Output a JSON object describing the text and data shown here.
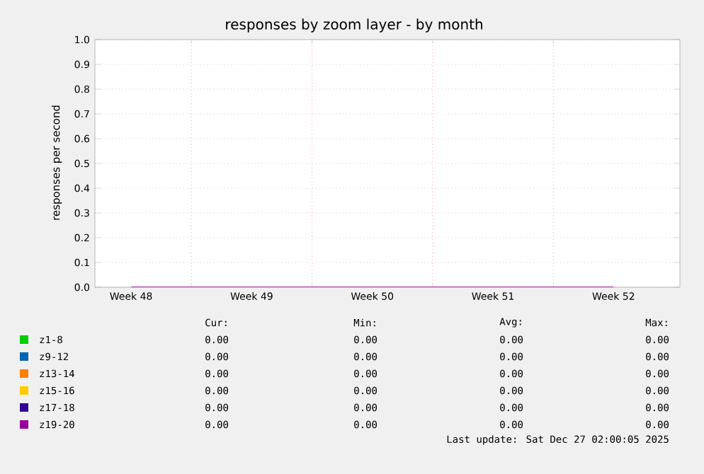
{
  "chart_data": {
    "type": "line",
    "title": "responses by zoom layer - by month",
    "ylabel": "responses per second",
    "categories": [
      "Week 48",
      "Week 49",
      "Week 50",
      "Week 51",
      "Week 52"
    ],
    "ylim": [
      0,
      1
    ],
    "yticks": [
      {
        "value": 0,
        "label": "0.0"
      },
      {
        "value": 0.1,
        "label": "0.1"
      },
      {
        "value": 0.2,
        "label": "0.2"
      },
      {
        "value": 0.3,
        "label": "0.3"
      },
      {
        "value": 0.4,
        "label": "0.4"
      },
      {
        "value": 0.5,
        "label": "0.5"
      },
      {
        "value": 0.6,
        "label": "0.6"
      },
      {
        "value": 0.7,
        "label": "0.7"
      },
      {
        "value": 0.8,
        "label": "0.8"
      },
      {
        "value": 0.9,
        "label": "0.9"
      },
      {
        "value": 1,
        "label": "1.0"
      }
    ],
    "grid": true,
    "legend": "bottom",
    "marker": "none",
    "series": [
      {
        "name": "z1-8",
        "color": "#00cc00",
        "values": [
          null,
          null,
          null,
          null,
          null
        ]
      },
      {
        "name": "z9-12",
        "color": "#0066b3",
        "values": [
          null,
          null,
          null,
          null,
          null
        ]
      },
      {
        "name": "z13-14",
        "color": "#ff8000",
        "values": [
          null,
          null,
          null,
          null,
          null
        ]
      },
      {
        "name": "z15-16",
        "color": "#ffcc00",
        "values": [
          null,
          null,
          null,
          null,
          null
        ]
      },
      {
        "name": "z17-18",
        "color": "#330099",
        "values": [
          null,
          null,
          null,
          null,
          null
        ]
      },
      {
        "name": "z19-20",
        "color": "#990099",
        "values": [
          0,
          0,
          0,
          0,
          0
        ]
      }
    ],
    "annotations": [
      "Cur:",
      "Min:",
      "Avg:",
      "Max:",
      "0.00",
      "0.00",
      "0.00",
      "0.00",
      "0.00",
      "0.00",
      "0.00",
      "0.00",
      "0.00",
      "0.00",
      "0.00",
      "0.00",
      "0.00",
      "0.00",
      "0.00",
      "0.00",
      "0.00",
      "0.00",
      "0.00",
      "0.00",
      "0.00",
      "0.00",
      "0.00",
      "0.00",
      "Last update: Sat Dec 27 02:00:05 2025"
    ]
  }
}
